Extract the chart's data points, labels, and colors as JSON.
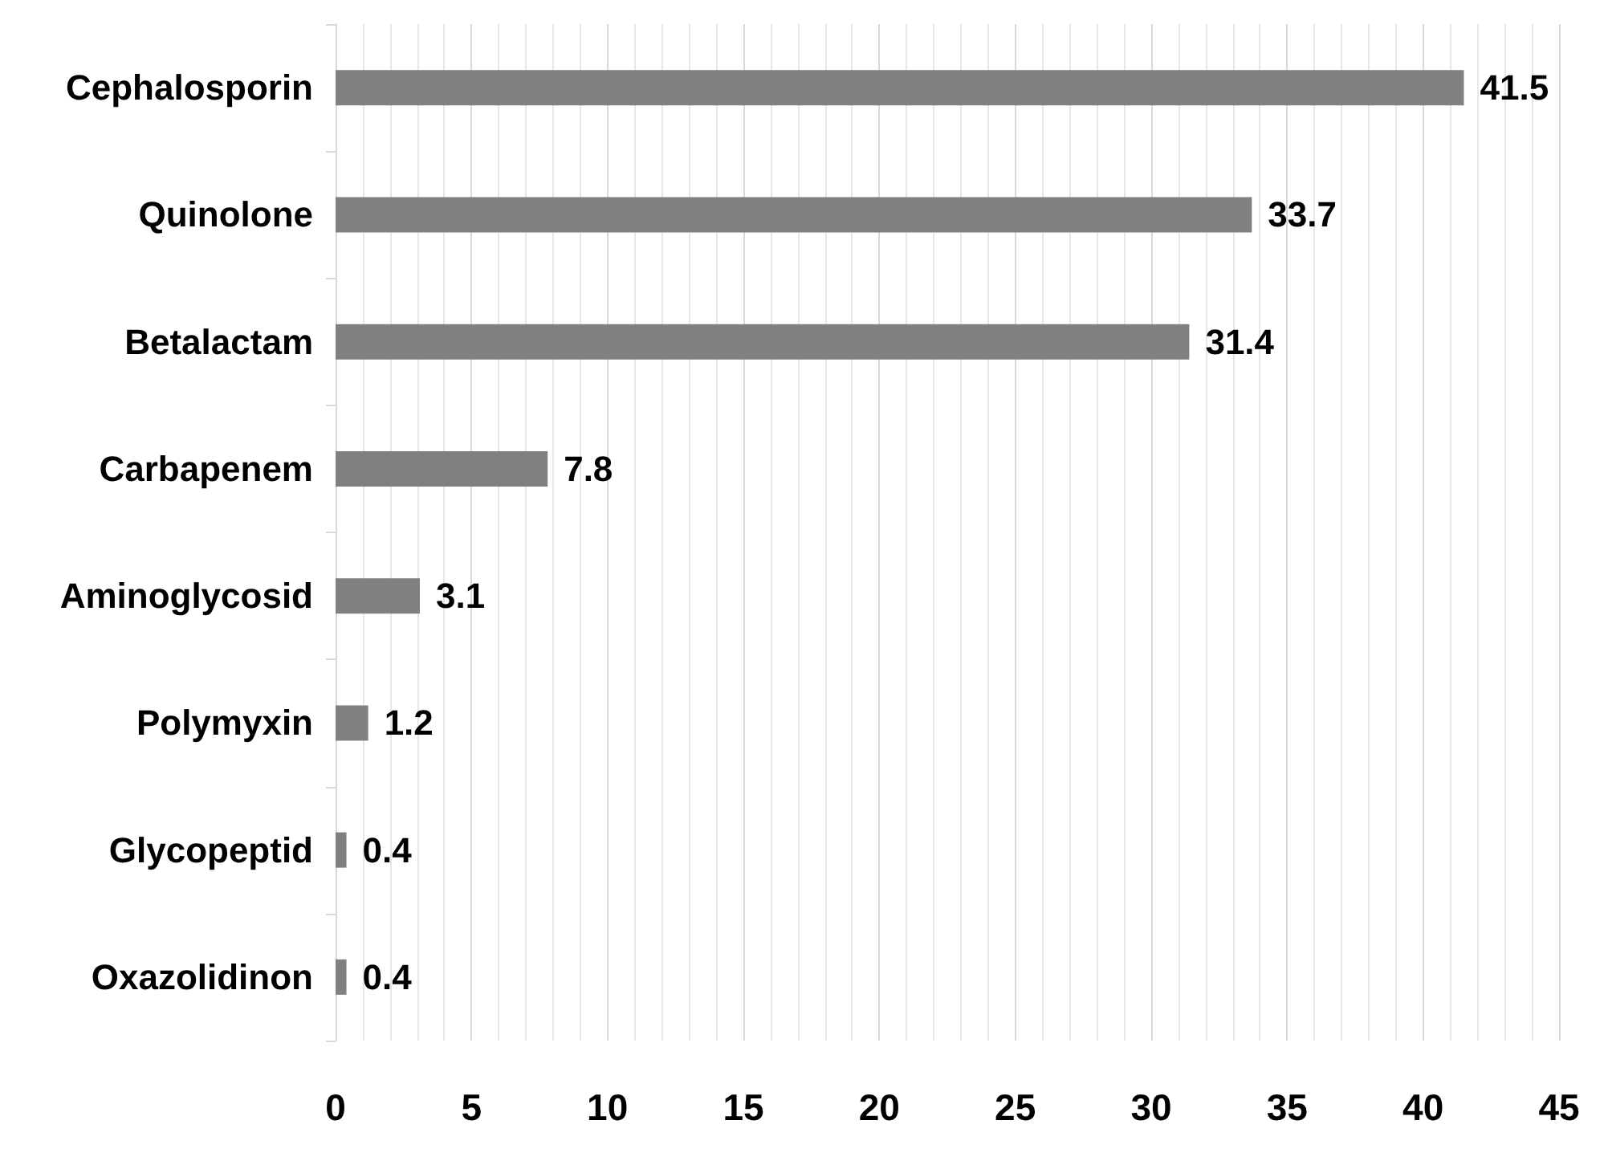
{
  "chart_data": {
    "type": "bar",
    "orientation": "horizontal",
    "categories": [
      "Cephalosporin",
      "Quinolone",
      "Betalactam",
      "Carbapenem",
      "Aminoglycosid",
      "Polymyxin",
      "Glycopeptid",
      "Oxazolidinon"
    ],
    "values": [
      41.5,
      33.7,
      31.4,
      7.8,
      3.1,
      1.2,
      0.4,
      0.4
    ],
    "color": "#808080",
    "xlim": [
      0,
      45
    ],
    "xticks": [
      0,
      5,
      10,
      15,
      20,
      25,
      30,
      35,
      40,
      45
    ],
    "grid": "x",
    "data_labels": true
  }
}
